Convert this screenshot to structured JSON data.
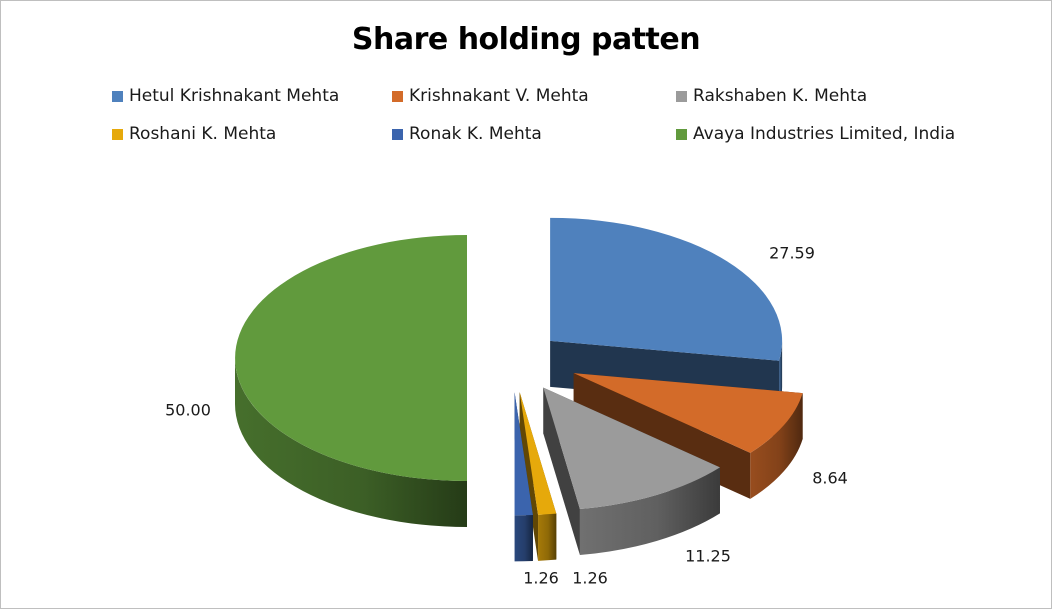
{
  "chart_data": {
    "type": "pie",
    "title": "Share holding patten",
    "legend_position": "top",
    "series": [
      {
        "name": "Hetul Krishnakant Mehta",
        "value": 27.59,
        "label": "27.59",
        "color": "#4f81bd"
      },
      {
        "name": "Krishnakant V. Mehta",
        "value": 8.64,
        "label": "8.64",
        "color": "#d36b29"
      },
      {
        "name": "Rakshaben K. Mehta",
        "value": 11.25,
        "label": "11.25",
        "color": "#9b9b9b"
      },
      {
        "name": "Roshani K. Mehta",
        "value": 1.26,
        "label": "1.26",
        "color": "#e6a90b"
      },
      {
        "name": "Ronak K. Mehta",
        "value": 1.26,
        "label": "1.26",
        "color": "#3b64ad"
      },
      {
        "name": "Avaya Industries Limited, India",
        "value": 50.0,
        "label": "50.00",
        "color": "#619a3d"
      }
    ]
  }
}
